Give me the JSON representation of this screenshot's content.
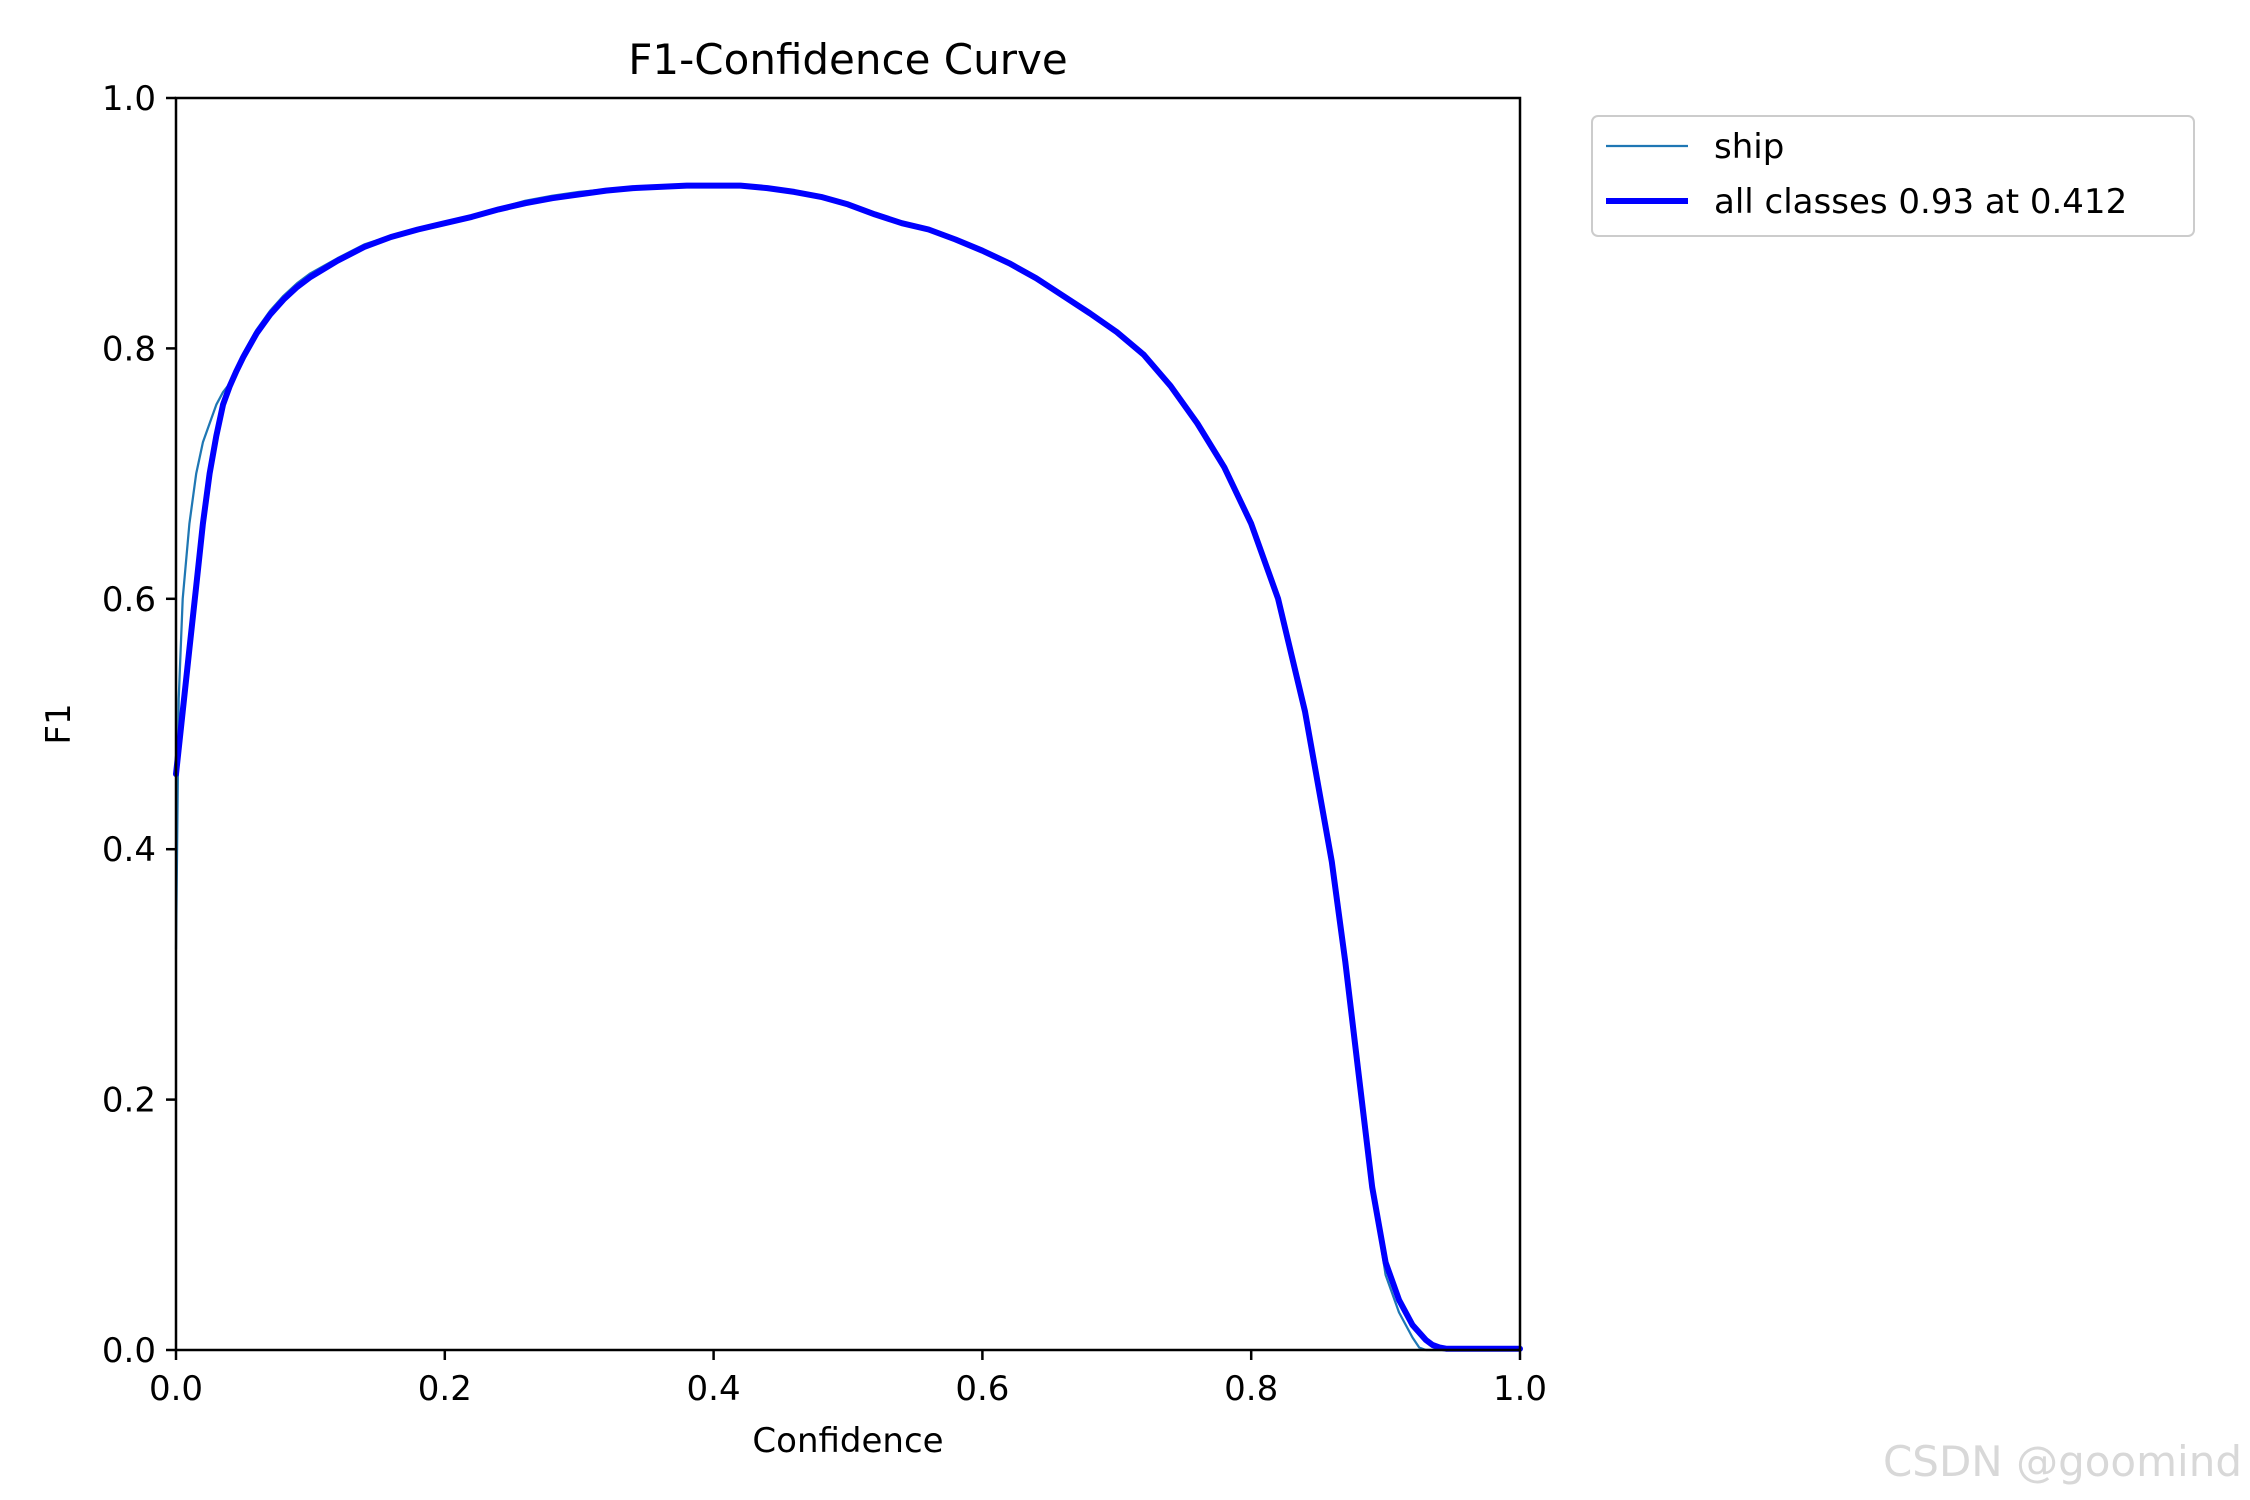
{
  "chart_data": {
    "type": "line",
    "title": "F1-Confidence Curve",
    "xlabel": "Confidence",
    "ylabel": "F1",
    "xlim": [
      0.0,
      1.0
    ],
    "ylim": [
      0.0,
      1.0
    ],
    "xticks": [
      "0.0",
      "0.2",
      "0.4",
      "0.6",
      "0.8",
      "1.0"
    ],
    "yticks": [
      "0.0",
      "0.2",
      "0.4",
      "0.6",
      "0.8",
      "1.0"
    ],
    "grid": false,
    "legend_position": "outside-top-right",
    "series": [
      {
        "name": "ship",
        "color": "#1f77b4",
        "x": [
          0.0,
          0.002,
          0.005,
          0.01,
          0.015,
          0.02,
          0.025,
          0.03,
          0.035,
          0.04,
          0.045,
          0.05,
          0.06,
          0.07,
          0.08,
          0.09,
          0.1,
          0.12,
          0.14,
          0.16,
          0.18,
          0.2,
          0.22,
          0.24,
          0.26,
          0.28,
          0.3,
          0.32,
          0.34,
          0.36,
          0.38,
          0.4,
          0.412,
          0.42,
          0.44,
          0.46,
          0.48,
          0.5,
          0.52,
          0.54,
          0.56,
          0.58,
          0.6,
          0.62,
          0.64,
          0.66,
          0.68,
          0.7,
          0.72,
          0.74,
          0.76,
          0.78,
          0.8,
          0.82,
          0.84,
          0.86,
          0.87,
          0.88,
          0.89,
          0.9,
          0.91,
          0.92,
          0.925,
          0.93,
          0.935,
          0.94,
          0.945,
          0.95,
          0.96,
          0.98,
          1.0
        ],
        "y": [
          0.32,
          0.52,
          0.6,
          0.66,
          0.7,
          0.725,
          0.74,
          0.755,
          0.765,
          0.772,
          0.785,
          0.796,
          0.815,
          0.83,
          0.842,
          0.852,
          0.86,
          0.872,
          0.883,
          0.89,
          0.896,
          0.9,
          0.906,
          0.912,
          0.918,
          0.922,
          0.925,
          0.927,
          0.929,
          0.93,
          0.93,
          0.93,
          0.93,
          0.93,
          0.928,
          0.925,
          0.921,
          0.915,
          0.907,
          0.9,
          0.895,
          0.887,
          0.878,
          0.868,
          0.856,
          0.842,
          0.828,
          0.813,
          0.795,
          0.77,
          0.74,
          0.705,
          0.66,
          0.6,
          0.51,
          0.39,
          0.31,
          0.22,
          0.13,
          0.06,
          0.03,
          0.01,
          0.002,
          0.0,
          0.0,
          0.0,
          0.0,
          0.0,
          0.0,
          0.0,
          0.0
        ],
        "line_width": 1.5
      },
      {
        "name": "all classes 0.93 at 0.412",
        "color": "#0000ff",
        "x": [
          0.0,
          0.005,
          0.01,
          0.015,
          0.02,
          0.025,
          0.03,
          0.035,
          0.04,
          0.045,
          0.05,
          0.06,
          0.07,
          0.08,
          0.09,
          0.1,
          0.12,
          0.14,
          0.16,
          0.18,
          0.2,
          0.22,
          0.24,
          0.26,
          0.28,
          0.3,
          0.32,
          0.34,
          0.36,
          0.38,
          0.4,
          0.412,
          0.42,
          0.44,
          0.46,
          0.48,
          0.5,
          0.52,
          0.54,
          0.56,
          0.58,
          0.6,
          0.62,
          0.64,
          0.66,
          0.68,
          0.7,
          0.72,
          0.74,
          0.76,
          0.78,
          0.8,
          0.82,
          0.84,
          0.86,
          0.87,
          0.88,
          0.89,
          0.9,
          0.91,
          0.92,
          0.93,
          0.935,
          0.94,
          0.945,
          0.95,
          0.96,
          0.98,
          1.0
        ],
        "y": [
          0.46,
          0.51,
          0.56,
          0.61,
          0.66,
          0.7,
          0.73,
          0.755,
          0.77,
          0.782,
          0.793,
          0.812,
          0.827,
          0.839,
          0.849,
          0.857,
          0.87,
          0.881,
          0.889,
          0.895,
          0.9,
          0.905,
          0.911,
          0.916,
          0.92,
          0.923,
          0.926,
          0.928,
          0.929,
          0.93,
          0.93,
          0.93,
          0.93,
          0.928,
          0.925,
          0.921,
          0.915,
          0.907,
          0.9,
          0.895,
          0.887,
          0.878,
          0.868,
          0.856,
          0.842,
          0.828,
          0.813,
          0.795,
          0.77,
          0.74,
          0.705,
          0.66,
          0.6,
          0.51,
          0.39,
          0.31,
          0.22,
          0.13,
          0.07,
          0.04,
          0.02,
          0.008,
          0.004,
          0.002,
          0.001,
          0.001,
          0.001,
          0.001,
          0.001
        ],
        "line_width": 4
      }
    ]
  },
  "watermark": "CSDN @goomind"
}
